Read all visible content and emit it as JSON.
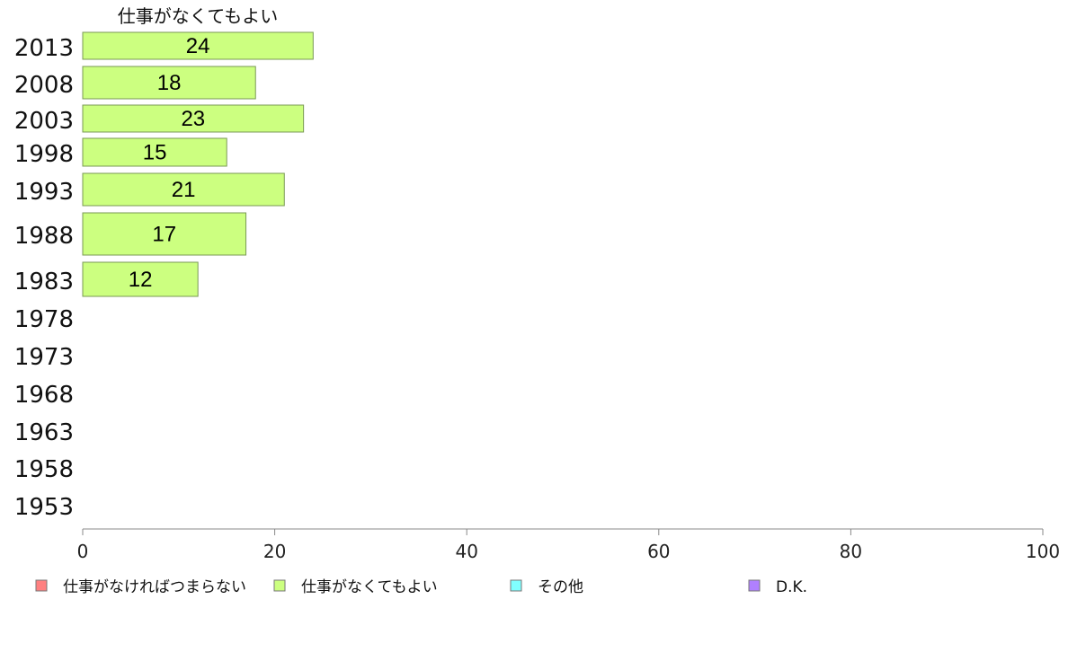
{
  "chart_data": {
    "type": "bar",
    "orientation": "horizontal",
    "stacked": true,
    "series_title": "仕事がなくてもよい",
    "categories": [
      "2013",
      "2008",
      "2003",
      "1998",
      "1993",
      "1988",
      "1983",
      "1978",
      "1973",
      "1968",
      "1963",
      "1958",
      "1953"
    ],
    "series": [
      {
        "name": "仕事がなければつまらない",
        "color": "#FF8080",
        "values": [
          null,
          null,
          null,
          null,
          null,
          null,
          null,
          null,
          null,
          null,
          null,
          null,
          null
        ]
      },
      {
        "name": "仕事がなくてもよい",
        "color": "#CCFF80",
        "values": [
          24,
          18,
          23,
          15,
          21,
          17,
          12,
          null,
          null,
          null,
          null,
          null,
          null
        ]
      },
      {
        "name": "その他",
        "color": "#80FFFF",
        "values": [
          null,
          null,
          null,
          null,
          null,
          null,
          null,
          null,
          null,
          null,
          null,
          null,
          null
        ]
      },
      {
        "name": "D.K.",
        "color": "#B080FF",
        "values": [
          null,
          null,
          null,
          null,
          null,
          null,
          null,
          null,
          null,
          null,
          null,
          null,
          null
        ]
      }
    ],
    "xlim": [
      0,
      100
    ],
    "xticks": [
      "0",
      "20",
      "40",
      "60",
      "80",
      "100"
    ],
    "legend_position": "bottom",
    "grid": false
  }
}
